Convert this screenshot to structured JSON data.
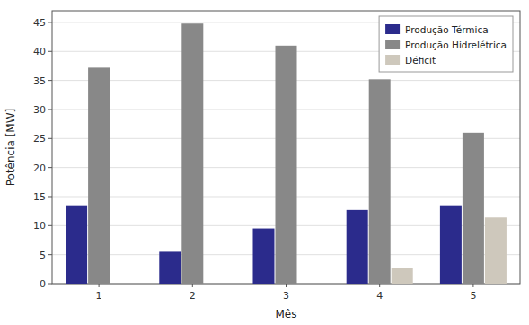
{
  "chart_data": {
    "type": "bar",
    "xlabel": "Mês",
    "ylabel": "Potência [MW]",
    "categories": [
      "1",
      "2",
      "3",
      "4",
      "5"
    ],
    "series": [
      {
        "name": "Produção Térmica",
        "color": "#2B2B8C",
        "values": [
          13.5,
          5.5,
          9.5,
          12.7,
          13.5
        ]
      },
      {
        "name": "Produção Hidrelétrica",
        "color": "#888888",
        "values": [
          37.2,
          44.8,
          41.0,
          35.2,
          26.0
        ]
      },
      {
        "name": "Déficit",
        "color": "#CEC8BC",
        "values": [
          0.0,
          0.0,
          0.0,
          2.7,
          11.4
        ]
      }
    ],
    "ylim": [
      0,
      47
    ],
    "yticks": [
      0,
      5,
      10,
      15,
      20,
      25,
      30,
      35,
      40,
      45
    ],
    "grid": true,
    "legend": "upper right"
  }
}
